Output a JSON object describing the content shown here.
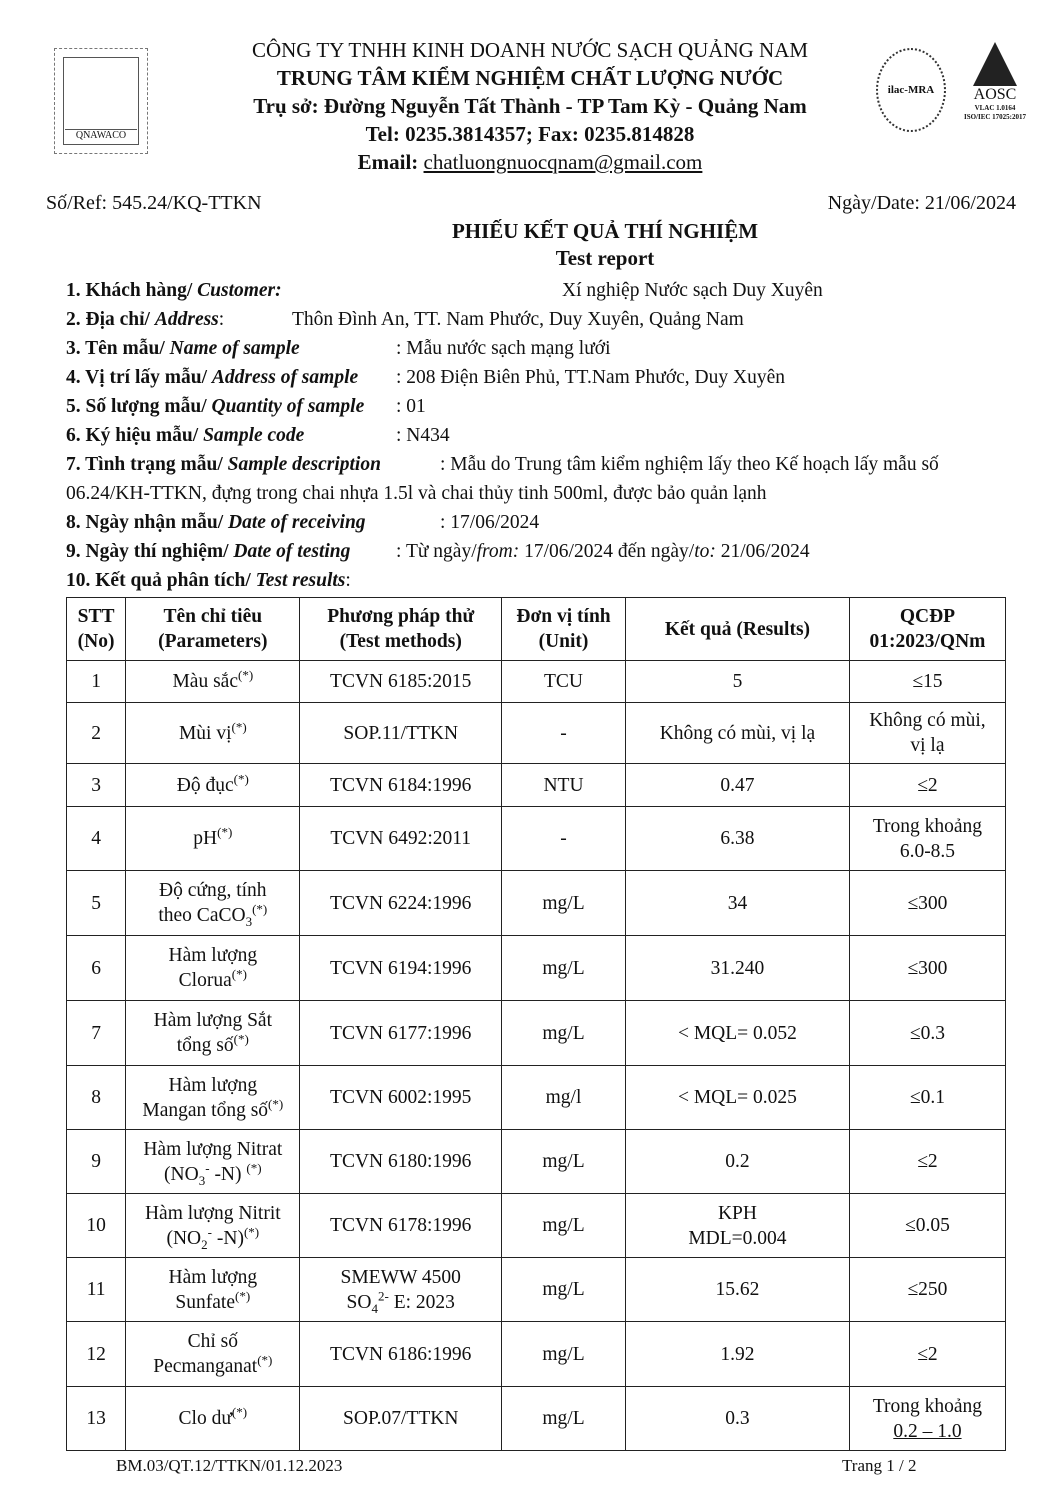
{
  "header": {
    "company": "CÔNG TY TNHH KINH DOANH NƯỚC SẠCH QUẢNG NAM",
    "center": "TRUNG TÂM KIỂM NGHIỆM CHẤT LƯỢNG NƯỚC",
    "address": "Trụ sở: Đường Nguyễn Tất Thành - TP Tam Kỳ -  Quảng Nam",
    "phone": "Tel: 0235.3814357; Fax: 0235.814828",
    "email_label": "Email: ",
    "email": "chatluongnuocqnam@gmail.com",
    "logo_text": "QNAWACO",
    "seal_text": "ilac-MRA",
    "accreditation": {
      "name": "AOSC",
      "line1": "VLAC 1.0164",
      "line2": "ISO/IEC 17025:2017"
    }
  },
  "ref": "Số/Ref: 545.24/KQ-TTKN",
  "date": "Ngày/Date: 21/06/2024",
  "title": "PHIẾU KẾT QUẢ THÍ NGHIỆM",
  "subtitle": "Test report",
  "info": [
    {
      "label": "1. Khách hàng/ ",
      "label_en": "Customer:",
      "value": "Xí nghiệp Nước sạch Duy Xuyên"
    },
    {
      "label": "2. Địa chỉ/ ",
      "label_en": "Address",
      "sep": ":",
      "value": "Thôn Đình An, TT. Nam Phước, Duy Xuyên, Quảng Nam"
    },
    {
      "label": "3. Tên mẫu/ ",
      "label_en": "Name of sample",
      "value": ": Mẫu nước sạch mạng lưới"
    },
    {
      "label": "4. Vị trí lấy mẫu/ ",
      "label_en": "Address of sample",
      "value": ": 208 Điện Biên Phủ, TT.Nam Phước, Duy Xuyên"
    },
    {
      "label": "5. Số lượng mẫu/ ",
      "label_en": "Quantity of sample",
      "value": ": 01"
    },
    {
      "label": "6. Ký hiệu mẫu/ ",
      "label_en": "Sample code",
      "value": ": N434"
    },
    {
      "label": "7. Tình trạng mẫu/ ",
      "label_en": "Sample description",
      "value": ": Mẫu do Trung tâm kiểm nghiệm lấy theo Kế hoạch lấy mẫu số"
    },
    {
      "label": "",
      "label_en": "",
      "value": "06.24/KH-TTKN, đựng trong chai nhựa 1.5l và chai thủy tinh 500ml, được bảo quản lạnh"
    },
    {
      "label": "8. Ngày nhận mẫu/ ",
      "label_en": "Date of receiving",
      "value": ": 17/06/2024"
    },
    {
      "label": "9. Ngày thí nghiệm/ ",
      "label_en": "Date of testing",
      "value": ": Từ ngày/",
      "from_label": "from:",
      "from": " 17/06/2024  đến ngày/",
      "to_label": "to:",
      "to": " 21/06/2024"
    },
    {
      "label": "10. Kết quả phân tích/ ",
      "label_en": "Test results",
      "sep": ":"
    }
  ],
  "table": {
    "headers": [
      [
        "STT",
        "(No)"
      ],
      [
        "Tên chỉ tiêu",
        "(Parameters)"
      ],
      [
        "Phương pháp thử",
        "(Test methods)"
      ],
      [
        "Đơn vị tính",
        "(Unit)"
      ],
      [
        "Kết quả (Results)"
      ],
      [
        "QCĐP",
        "01:2023/QNm"
      ]
    ],
    "rows": [
      {
        "no": "1",
        "param": [
          [
            {
              "t": "Màu sắc"
            },
            {
              "sup": "(*)"
            }
          ]
        ],
        "method": [
          [
            {
              "t": "TCVN 6185:2015"
            }
          ]
        ],
        "unit": "TCU",
        "result": [
          "5"
        ],
        "limit": [
          "≤15"
        ]
      },
      {
        "no": "2",
        "param": [
          [
            {
              "t": "Mùi vị"
            },
            {
              "sup": "(*)"
            }
          ]
        ],
        "method": [
          [
            {
              "t": "SOP.11/TTKN"
            }
          ]
        ],
        "unit": "-",
        "result": [
          "Không có mùi, vị lạ"
        ],
        "limit": [
          "Không có mùi,",
          "vị lạ"
        ]
      },
      {
        "no": "3",
        "param": [
          [
            {
              "t": "Độ đục"
            },
            {
              "sup": "(*)"
            }
          ]
        ],
        "method": [
          [
            {
              "t": "TCVN 6184:1996"
            }
          ]
        ],
        "unit": "NTU",
        "result": [
          "0.47"
        ],
        "limit": [
          "≤2"
        ]
      },
      {
        "no": "4",
        "param": [
          [
            {
              "t": "pH"
            },
            {
              "sup": "(*)"
            }
          ]
        ],
        "method": [
          [
            {
              "t": "TCVN 6492:2011"
            }
          ]
        ],
        "unit": "-",
        "result": [
          "6.38"
        ],
        "limit": [
          "Trong khoảng",
          "6.0-8.5"
        ]
      },
      {
        "no": "5",
        "param": [
          [
            {
              "t": "Độ cứng, tính"
            }
          ],
          [
            {
              "t": "theo CaCO"
            },
            {
              "sub": "3"
            },
            {
              "sup": "(*)"
            }
          ]
        ],
        "method": [
          [
            {
              "t": "TCVN 6224:1996"
            }
          ]
        ],
        "unit": "mg/L",
        "result": [
          "34"
        ],
        "limit": [
          "≤300"
        ]
      },
      {
        "no": "6",
        "param": [
          [
            {
              "t": "Hàm lượng"
            }
          ],
          [
            {
              "t": "Clorua"
            },
            {
              "sup": "(*)"
            }
          ]
        ],
        "method": [
          [
            {
              "t": "TCVN 6194:1996"
            }
          ]
        ],
        "unit": "mg/L",
        "result": [
          "31.240"
        ],
        "limit": [
          "≤300"
        ]
      },
      {
        "no": "7",
        "param": [
          [
            {
              "t": "Hàm lượng Sắt"
            }
          ],
          [
            {
              "t": "tổng số"
            },
            {
              "sup": "(*)"
            }
          ]
        ],
        "method": [
          [
            {
              "t": "TCVN 6177:1996"
            }
          ]
        ],
        "unit": "mg/L",
        "result": [
          "< MQL= 0.052"
        ],
        "limit": [
          "≤0.3"
        ]
      },
      {
        "no": "8",
        "param": [
          [
            {
              "t": "Hàm lượng"
            }
          ],
          [
            {
              "t": "Mangan tổng số"
            },
            {
              "sup": "(*)"
            }
          ]
        ],
        "method": [
          [
            {
              "t": "TCVN 6002:1995"
            }
          ]
        ],
        "unit": "mg/l",
        "result": [
          "< MQL= 0.025"
        ],
        "limit": [
          "≤0.1"
        ]
      },
      {
        "no": "9",
        "param": [
          [
            {
              "t": "Hàm lượng Nitrat"
            }
          ],
          [
            {
              "t": "(NO"
            },
            {
              "sub": "3"
            },
            {
              "sup": "-"
            },
            {
              "t": " -N) "
            },
            {
              "sup": "(*)"
            }
          ]
        ],
        "method": [
          [
            {
              "t": "TCVN 6180:1996"
            }
          ]
        ],
        "unit": "mg/L",
        "result": [
          "0.2"
        ],
        "limit": [
          "≤2"
        ]
      },
      {
        "no": "10",
        "param": [
          [
            {
              "t": "Hàm lượng Nitrit"
            }
          ],
          [
            {
              "t": "(NO"
            },
            {
              "sub": "2"
            },
            {
              "sup": "-"
            },
            {
              "t": " -N)"
            },
            {
              "sup": "(*)"
            }
          ]
        ],
        "method": [
          [
            {
              "t": "TCVN 6178:1996"
            }
          ]
        ],
        "unit": "mg/L",
        "result": [
          "KPH",
          "MDL=0.004"
        ],
        "limit": [
          "≤0.05"
        ]
      },
      {
        "no": "11",
        "param": [
          [
            {
              "t": "Hàm lượng"
            }
          ],
          [
            {
              "t": "Sunfate"
            },
            {
              "sup": "(*)"
            }
          ]
        ],
        "method": [
          [
            {
              "t": "SMEWW 4500"
            }
          ],
          [
            {
              "t": "SO"
            },
            {
              "sub": "4"
            },
            {
              "sup": "2-"
            },
            {
              "t": " E: 2023"
            }
          ]
        ],
        "unit": "mg/L",
        "result": [
          "15.62"
        ],
        "limit": [
          "≤250"
        ]
      },
      {
        "no": "12",
        "param": [
          [
            {
              "t": "Chỉ số"
            }
          ],
          [
            {
              "t": "Pecmanganat"
            },
            {
              "sup": "(*)"
            }
          ]
        ],
        "method": [
          [
            {
              "t": "TCVN 6186:1996"
            }
          ]
        ],
        "unit": "mg/L",
        "result": [
          "1.92"
        ],
        "limit": [
          "≤2"
        ]
      },
      {
        "no": "13",
        "param": [
          [
            {
              "t": "Clo dư"
            },
            {
              "sup": "(*)"
            }
          ]
        ],
        "method": [
          [
            {
              "t": "SOP.07/TTKN"
            }
          ]
        ],
        "unit": "mg/L",
        "result": [
          "0.3"
        ],
        "limit": [
          "Trong khoảng",
          "0.2 – 1.0"
        ]
      }
    ]
  },
  "footer": {
    "form_code": "BM.03/QT.12/TTKN/01.12.2023",
    "page": "Trang 1 / 2"
  }
}
